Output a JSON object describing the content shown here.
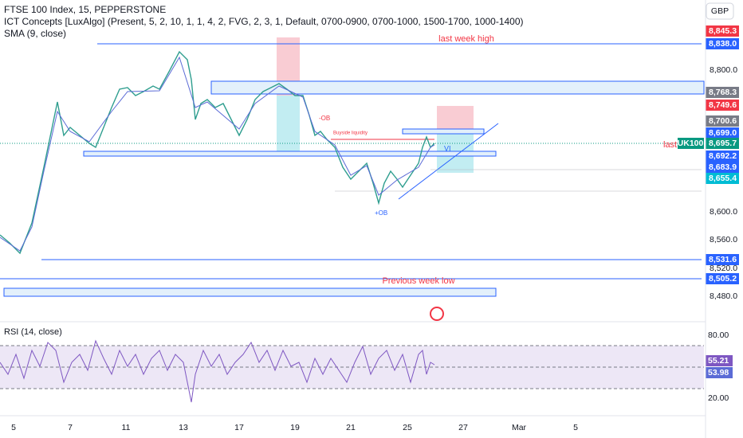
{
  "header": {
    "symbol": "FTSE 100 Index, 15, PEPPERSTONE",
    "indicator": "ICT Concepts [LuxAlgo] (Present, 5, 2, 10, 1, 1, 4, 2, FVG, 2, 3, 1, Default, 0700-0900, 0700-1000, 1500-1700, 1000-1400)",
    "sma": "SMA (9, close)",
    "currency": "GBP"
  },
  "price_axis": [
    "8,800.0",
    "8,600.0",
    "8,560.0",
    "8,520.0",
    "8,480.0"
  ],
  "badges": [
    "8,845.3",
    "8,838.0",
    "8,768.3",
    "8,749.6",
    "8,700.6",
    "8,699.0",
    "8,695.7",
    "8,692.2",
    "8,683.9",
    "8,655.4",
    "8,531.6",
    "8,505.2"
  ],
  "symbol_tag": "UK100",
  "annotations": {
    "last_week_high": "last week high",
    "previous_week_low": "Previous week low",
    "bear_ob": "-OB",
    "bull_ob": "+OB",
    "buyside": "Buyside liquidity",
    "last": "last",
    "vi": "VI"
  },
  "time_axis": [
    "5",
    "7",
    "11",
    "13",
    "17",
    "19",
    "21",
    "25",
    "27",
    "Mar",
    "5"
  ],
  "rsi": {
    "title": "RSI (14, close)",
    "axis": [
      "80.00",
      "20.00"
    ],
    "badges": [
      "55.21",
      "53.98"
    ]
  }
}
